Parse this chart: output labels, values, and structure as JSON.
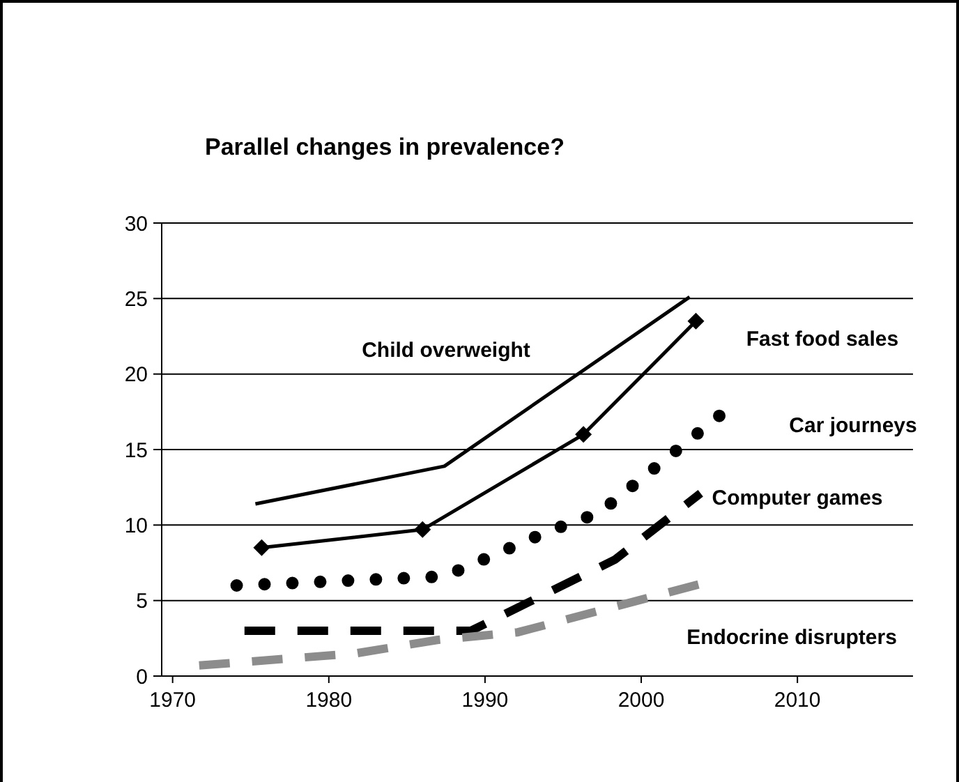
{
  "chart_data": {
    "type": "line",
    "title": "Parallel changes in prevalence?",
    "xlim": [
      1969.3,
      2017.4
    ],
    "xticks": [
      1970,
      1980,
      1990,
      2000,
      2010
    ],
    "ylim": [
      0,
      30
    ],
    "yticks": [
      0,
      5,
      10,
      15,
      20,
      25,
      30
    ],
    "grid": "y",
    "series": [
      {
        "name": "Child overweight",
        "color": "#000000",
        "line_style": "solid",
        "marker": "none",
        "x": [
          1975.3,
          1987.4,
          2003.1
        ],
        "values": [
          11.4,
          13.9,
          25.1
        ]
      },
      {
        "name": "Fast food sales",
        "color": "#000000",
        "line_style": "solid",
        "marker": "diamond",
        "x": [
          1975.7,
          1986.0,
          1996.3,
          2003.5
        ],
        "values": [
          8.5,
          9.7,
          16.0,
          23.5
        ]
      },
      {
        "name": "Car journeys",
        "color": "#000000",
        "line_style": "dotted",
        "marker": "none",
        "x": [
          1974.1,
          1987.4,
          1994.1,
          1997.3,
          2005.8
        ],
        "values": [
          6.0,
          6.6,
          9.6,
          10.8,
          17.9
        ]
      },
      {
        "name": "Computer games",
        "color": "#000000",
        "line_style": "dashed",
        "marker": "none",
        "x": [
          1974.6,
          1989.1,
          1998.3,
          2003.8
        ],
        "values": [
          3.0,
          3.0,
          7.7,
          12.1
        ]
      },
      {
        "name": "Endocrine disrupters",
        "color": "#8c8c8c",
        "line_style": "dashed",
        "marker": "none",
        "x": [
          1971.7,
          1981.7,
          1987.0,
          1992.1,
          2003.8
        ],
        "values": [
          0.7,
          1.5,
          2.4,
          2.9,
          6.1
        ]
      }
    ]
  }
}
